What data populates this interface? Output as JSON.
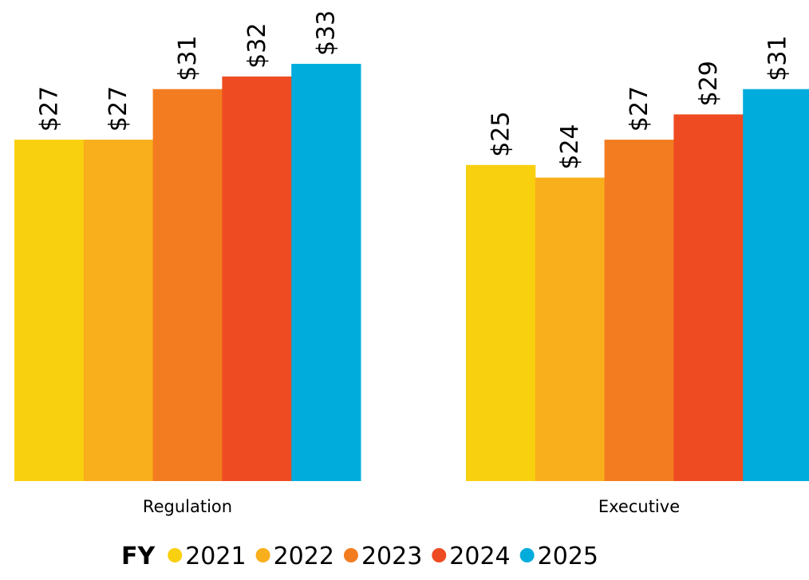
{
  "chart_data": {
    "type": "bar",
    "categories": [
      "Regulation",
      "Executive"
    ],
    "legend_title": "FY",
    "series": [
      {
        "name": "2021",
        "color": "#F9D00F",
        "values": [
          27,
          25
        ],
        "value_labels": [
          "$27",
          "$25"
        ]
      },
      {
        "name": "2022",
        "color": "#F9AE1B",
        "values": [
          27,
          24
        ],
        "value_labels": [
          "$27",
          "$24"
        ]
      },
      {
        "name": "2023",
        "color": "#F37C20",
        "values": [
          31,
          27
        ],
        "value_labels": [
          "$31",
          "$27"
        ]
      },
      {
        "name": "2024",
        "color": "#EF4B22",
        "values": [
          32,
          29
        ],
        "value_labels": [
          "$32",
          "$29"
        ]
      },
      {
        "name": "2025",
        "color": "#00ACDB",
        "values": [
          33,
          31
        ],
        "value_labels": [
          "$33",
          "$31"
        ]
      }
    ]
  }
}
